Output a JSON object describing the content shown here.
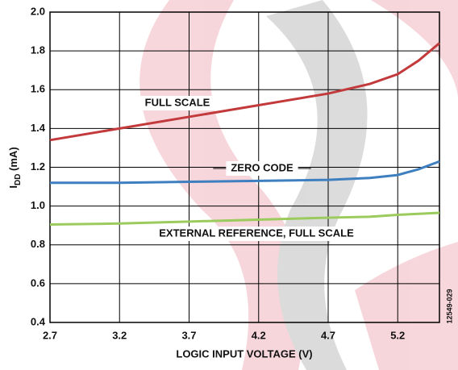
{
  "chart_data": {
    "type": "line",
    "xlabel": "LOGIC INPUT VOLTAGE (V)",
    "ylabel": {
      "main": "I",
      "sub": "DD",
      "rest": " (mA)"
    },
    "figure_id": "12549-029",
    "x": [
      2.7,
      3.2,
      3.7,
      4.2,
      4.7,
      5.0,
      5.2,
      5.35,
      5.5
    ],
    "series": [
      {
        "name": "FULL SCALE",
        "color": "#c23a3c",
        "values": [
          1.34,
          1.4,
          1.46,
          1.52,
          1.58,
          1.63,
          1.68,
          1.75,
          1.84
        ]
      },
      {
        "name": "ZERO CODE",
        "color": "#3e7fc0",
        "values": [
          1.12,
          1.12,
          1.125,
          1.13,
          1.135,
          1.145,
          1.16,
          1.19,
          1.23
        ]
      },
      {
        "name": "EXTERNAL REFERENCE, FULL SCALE",
        "color": "#9bcb5c",
        "values": [
          0.905,
          0.91,
          0.92,
          0.93,
          0.94,
          0.945,
          0.955,
          0.96,
          0.965
        ]
      }
    ],
    "xlim": [
      2.7,
      5.5
    ],
    "ylim": [
      0.4,
      2.0
    ],
    "xticks": [
      2.7,
      3.2,
      3.7,
      4.2,
      4.7,
      5.2
    ],
    "yticks": [
      0.4,
      0.6,
      0.8,
      {
        "value": 1.0,
        "label": "1.0"
      },
      1.2,
      1.4,
      1.6,
      1.8,
      {
        "value": 2.0,
        "label": "2.0"
      }
    ],
    "grid": true
  }
}
